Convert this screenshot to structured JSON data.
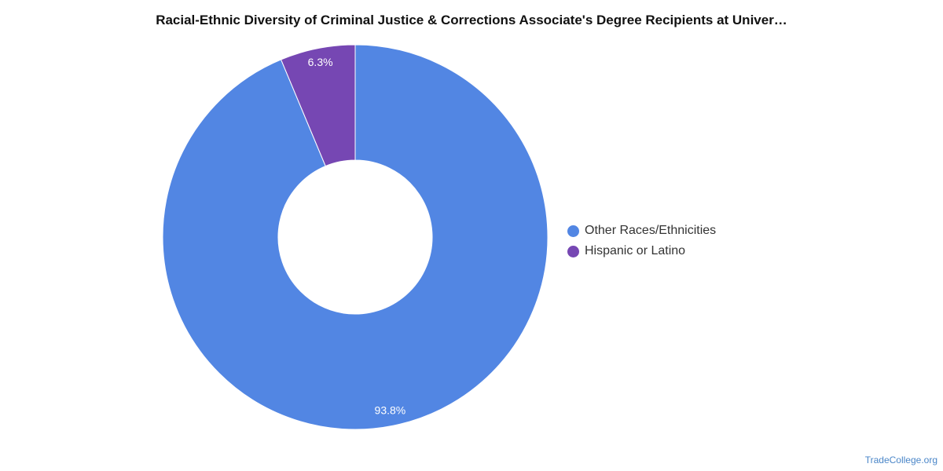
{
  "chart_data": {
    "type": "pie",
    "variant": "donut",
    "title": "Racial-Ethnic Diversity of Criminal Justice & Corrections Associate's Degree Recipients at Univer…",
    "slices": [
      {
        "label": "Other Races/Ethnicities",
        "value": 93.8,
        "display": "93.8%",
        "color": "#5286e3"
      },
      {
        "label": "Hispanic or Latino",
        "value": 6.3,
        "display": "6.3%",
        "color": "#7647b3"
      }
    ],
    "legend_position": "right"
  },
  "footer": {
    "source": "TradeCollege.org"
  }
}
